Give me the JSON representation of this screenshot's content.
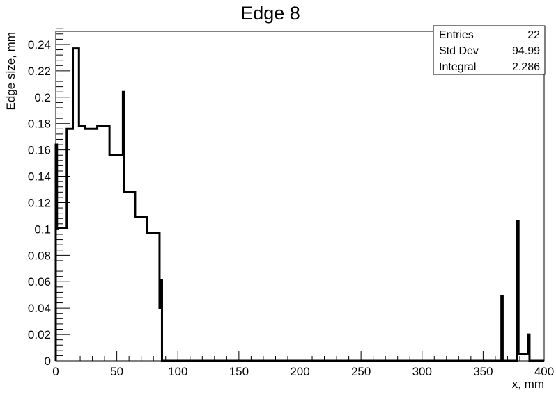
{
  "chart_data": {
    "type": "histogram-step",
    "title": "Edge 8",
    "xlabel": "x, mm",
    "ylabel": "Edge size, mm",
    "xlim": [
      0,
      400
    ],
    "ylim": [
      0,
      0.25
    ],
    "xticks": [
      0,
      50,
      100,
      150,
      200,
      250,
      300,
      350,
      400
    ],
    "yticks": [
      0,
      0.02,
      0.04,
      0.06,
      0.08,
      0.1,
      0.12,
      0.14,
      0.16,
      0.18,
      0.2,
      0.22,
      0.24
    ],
    "ytick_labels": [
      "0",
      "0.02",
      "0.04",
      "0.06",
      "0.08",
      "0.1",
      "0.12",
      "0.14",
      "0.16",
      "0.18",
      "0.2",
      "0.22",
      "0.24"
    ],
    "grid": false,
    "color": "#000000",
    "bins": [
      {
        "x0": 0,
        "x1": 1,
        "y": 0.164
      },
      {
        "x0": 1,
        "x1": 2,
        "y": 0.1
      },
      {
        "x0": 2,
        "x1": 9,
        "y": 0.101
      },
      {
        "x0": 9,
        "x1": 14,
        "y": 0.176
      },
      {
        "x0": 14,
        "x1": 19,
        "y": 0.237
      },
      {
        "x0": 19,
        "x1": 24,
        "y": 0.178
      },
      {
        "x0": 24,
        "x1": 34,
        "y": 0.176
      },
      {
        "x0": 34,
        "x1": 44,
        "y": 0.178
      },
      {
        "x0": 44,
        "x1": 55,
        "y": 0.156
      },
      {
        "x0": 55,
        "x1": 56,
        "y": 0.204
      },
      {
        "x0": 56,
        "x1": 65,
        "y": 0.128
      },
      {
        "x0": 65,
        "x1": 75,
        "y": 0.109
      },
      {
        "x0": 75,
        "x1": 85,
        "y": 0.097
      },
      {
        "x0": 85,
        "x1": 86,
        "y": 0.04
      },
      {
        "x0": 86,
        "x1": 87,
        "y": 0.061
      },
      {
        "x0": 87,
        "x1": 365,
        "y": 0
      },
      {
        "x0": 365,
        "x1": 366,
        "y": 0.049
      },
      {
        "x0": 366,
        "x1": 378,
        "y": 0
      },
      {
        "x0": 378,
        "x1": 379,
        "y": 0.106
      },
      {
        "x0": 379,
        "x1": 387,
        "y": 0.005
      },
      {
        "x0": 387,
        "x1": 388,
        "y": 0.02
      },
      {
        "x0": 388,
        "x1": 400,
        "y": 0
      }
    ]
  },
  "stats": [
    {
      "label": "Entries",
      "value": "22"
    },
    {
      "label": "Std Dev",
      "value": "94.99"
    },
    {
      "label": "Integral",
      "value": "2.286"
    }
  ]
}
